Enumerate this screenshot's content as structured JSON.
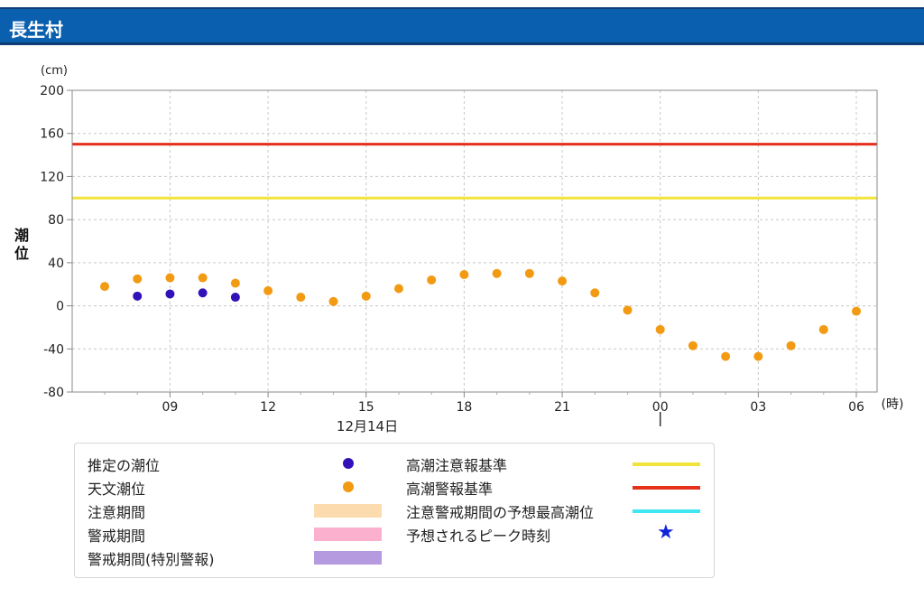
{
  "station": {
    "name": "長生村"
  },
  "chart_data": {
    "type": "scatter",
    "ylabel": "潮位",
    "yunit": "(cm)",
    "xunit": "(時)",
    "date_label": "12月14日",
    "ylim": [
      -80,
      200
    ],
    "yticks": [
      "200",
      "160",
      "120",
      "80",
      "40",
      "0",
      "-40",
      "-80"
    ],
    "xtick_labels": [
      "09",
      "12",
      "15",
      "18",
      "21",
      "00",
      "03",
      "06"
    ],
    "grid": true,
    "thresholds": [
      {
        "name": "高潮警報基準",
        "value": 150,
        "color": "#e5301b"
      },
      {
        "name": "高潮注意報基準",
        "value": 100,
        "color": "#f0e33a"
      }
    ],
    "series": [
      {
        "name": "推定の潮位",
        "color": "#3212b8",
        "x": [
          "12/14 08:00",
          "12/14 09:00",
          "12/14 10:00",
          "12/14 11:00"
        ],
        "values": [
          9,
          11,
          12,
          8
        ]
      },
      {
        "name": "天文潮位",
        "color": "#f29a12",
        "x": [
          "12/14 07:00",
          "12/14 08:00",
          "12/14 09:00",
          "12/14 10:00",
          "12/14 11:00",
          "12/14 12:00",
          "12/14 13:00",
          "12/14 14:00",
          "12/14 15:00",
          "12/14 16:00",
          "12/14 17:00",
          "12/14 18:00",
          "12/14 19:00",
          "12/14 20:00",
          "12/14 21:00",
          "12/14 22:00",
          "12/14 23:00",
          "12/15 00:00",
          "12/15 01:00",
          "12/15 02:00",
          "12/15 03:00",
          "12/15 04:00",
          "12/15 05:00",
          "12/15 06:00"
        ],
        "values": [
          18,
          25,
          26,
          26,
          21,
          14,
          8,
          4,
          9,
          16,
          24,
          29,
          30,
          30,
          23,
          12,
          -4,
          -22,
          -37,
          -47,
          -47,
          -37,
          -22,
          -5
        ]
      }
    ]
  },
  "legend": {
    "items": [
      {
        "label": "推定の潮位",
        "kind": "dot",
        "color": "#3212b8"
      },
      {
        "label": "天文潮位",
        "kind": "dot",
        "color": "#f29a12"
      },
      {
        "label": "注意期間",
        "kind": "bar",
        "color": "#fcdcae"
      },
      {
        "label": "警戒期間",
        "kind": "bar",
        "color": "#fbb0cd"
      },
      {
        "label": "警戒期間(特別警報)",
        "kind": "bar",
        "color": "#b69ae0"
      },
      {
        "label": "高潮注意報基準",
        "kind": "line",
        "color": "#f0e33a"
      },
      {
        "label": "高潮警報基準",
        "kind": "line",
        "color": "#e5301b"
      },
      {
        "label": "注意警戒期間の予想最高潮位",
        "kind": "line",
        "color": "#40e6f2"
      },
      {
        "label": "予想されるピーク時刻",
        "kind": "star",
        "color": "#1024d8"
      }
    ]
  }
}
